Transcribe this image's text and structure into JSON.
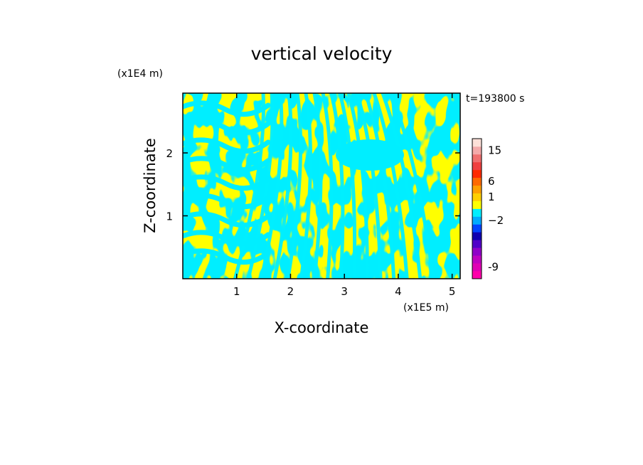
{
  "chart_data": {
    "type": "heatmap",
    "title": "vertical velocity",
    "xlabel": "X-coordinate",
    "ylabel": "Z-coordinate",
    "x_unit": "(x1E5 m)",
    "y_unit": "(x1E4 m)",
    "time_label": "t=193800 s",
    "xlim": [
      0,
      5.15
    ],
    "ylim": [
      0,
      2.95
    ],
    "x_ticks": [
      {
        "value": 1,
        "label": "1"
      },
      {
        "value": 2,
        "label": "2"
      },
      {
        "value": 3,
        "label": "3"
      },
      {
        "value": 4,
        "label": "4"
      },
      {
        "value": 5,
        "label": "5"
      }
    ],
    "y_ticks": [
      {
        "value": 1,
        "label": "1"
      },
      {
        "value": 2,
        "label": "2"
      }
    ],
    "field_colors": {
      "positive": "#ffff00",
      "negative": "#00eeff"
    },
    "colorbar": {
      "levels": [
        {
          "color": "#ff00aa"
        },
        {
          "color": "#e000b4"
        },
        {
          "color": "#c000c0"
        },
        {
          "color": "#9000c8"
        },
        {
          "color": "#5000c8"
        },
        {
          "color": "#1000b0"
        },
        {
          "color": "#0044ff"
        },
        {
          "color": "#00aaff"
        },
        {
          "color": "#00eeff"
        },
        {
          "color": "#ffff00"
        },
        {
          "color": "#ffd000"
        },
        {
          "color": "#ffa000"
        },
        {
          "color": "#ff6a00"
        },
        {
          "color": "#ff2a00"
        },
        {
          "color": "#f04040"
        },
        {
          "color": "#f07070"
        },
        {
          "color": "#f4aaaa"
        },
        {
          "color": "#fde0d8"
        }
      ],
      "tick_labels": [
        {
          "label": "-9",
          "level_index": 1
        },
        {
          "label": "−2",
          "level_index": 7
        },
        {
          "label": "1",
          "level_index": 10
        },
        {
          "label": "6",
          "level_index": 12
        },
        {
          "label": "15",
          "level_index": 16
        }
      ]
    }
  }
}
